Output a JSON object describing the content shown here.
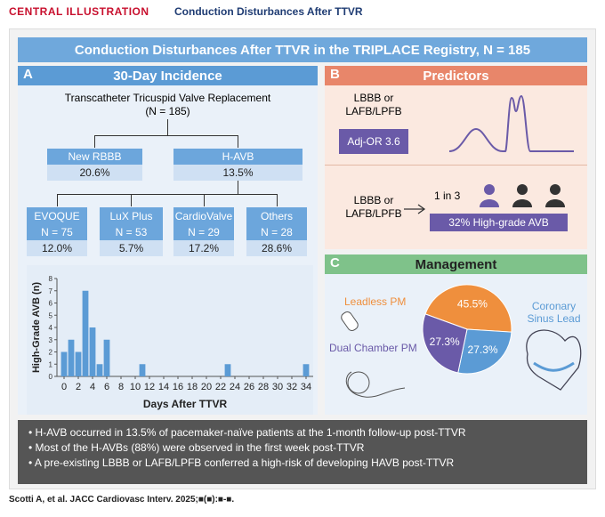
{
  "header": {
    "label": "CENTRAL ILLUSTRATION",
    "title": "Conduction Disturbances After TTVR"
  },
  "banner": "Conduction Disturbances After TTVR in the TRIPLACE Registry, N = 185",
  "panel_a": {
    "letter": "A",
    "title": "30-Day Incidence",
    "root": {
      "line1": "Transcatheter Tricuspid Valve Replacement",
      "line2": "(N = 185)"
    },
    "branches": [
      {
        "name": "New RBBB",
        "value": "20.6%"
      },
      {
        "name": "H-AVB",
        "value": "13.5%"
      }
    ],
    "devices": [
      {
        "name": "EVOQUE",
        "n": "N = 75",
        "value": "12.0%"
      },
      {
        "name": "LuX Plus",
        "n": "N = 53",
        "value": "5.7%"
      },
      {
        "name": "CardioValve",
        "n": "N = 29",
        "value": "17.2%"
      },
      {
        "name": "Others",
        "n": "N = 28",
        "value": "28.6%"
      }
    ],
    "chart": {
      "type": "bar",
      "x_label": "Days After TTVR",
      "y_label": "High-Grade AVB (n)",
      "x": [
        0,
        1,
        2,
        3,
        4,
        5,
        6,
        11,
        23,
        34
      ],
      "values": [
        2,
        3,
        2,
        7,
        4,
        1,
        3,
        1,
        1,
        1
      ],
      "color": "#5b9bd5",
      "xlim": [
        -1,
        35
      ],
      "xticks": [
        0,
        2,
        4,
        6,
        8,
        10,
        12,
        14,
        16,
        18,
        20,
        22,
        24,
        26,
        28,
        30,
        32,
        34
      ],
      "ylim": [
        0,
        8
      ],
      "yticks": [
        0,
        1,
        2,
        3,
        4,
        5,
        6,
        7,
        8
      ]
    }
  },
  "panel_b": {
    "letter": "B",
    "title": "Predictors",
    "top": {
      "line1": "LBBB or",
      "line2": "LAFB/LPFB",
      "badge": "Adj-OR 3.6"
    },
    "bottom": {
      "line1": "LBBB or",
      "line2": "LAFB/LPFB",
      "ratio": "1 in 3",
      "badge": "32% High-grade AVB"
    }
  },
  "panel_c": {
    "letter": "C",
    "title": "Management",
    "chart": {
      "type": "pie",
      "categories": [
        "Leadless PM",
        "Coronary Sinus Lead",
        "Dual Chamber PM"
      ],
      "values": [
        45.5,
        27.3,
        27.3
      ],
      "value_labels": [
        "45.5%",
        "27.3%",
        "27.3%"
      ],
      "colors": [
        "#ef8f3d",
        "#5b9bd5",
        "#6a5aa8"
      ]
    }
  },
  "bullets": [
    "H-AVB occurred in 13.5% of pacemaker-naïve patients at the 1-month follow-up post-TTVR",
    "Most of the H-AVBs (88%) were observed in the first week post-TTVR",
    "A pre-existing LBBB or LAFB/LPFB conferred a high-risk of developing HAVB post-TTVR"
  ],
  "citation": "Scotti A, et al. JACC Cardiovasc Interv. 2025;■(■):■-■."
}
